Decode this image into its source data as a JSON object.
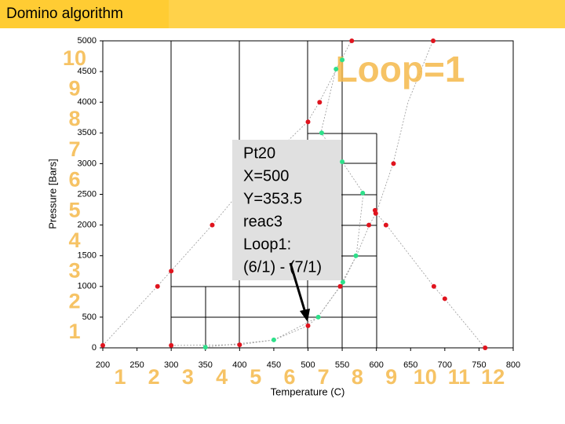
{
  "slide_title": "Domino algorithm",
  "chart_data": {
    "type": "scatter",
    "title": "Loop=1",
    "xlabel": "Temperature (C)",
    "ylabel": "Pressure [Bars]",
    "xlim": [
      200,
      800
    ],
    "ylim": [
      0,
      5000
    ],
    "xticks": [
      200,
      250,
      300,
      350,
      400,
      450,
      500,
      550,
      600,
      650,
      700,
      750,
      800
    ],
    "yticks": [
      0,
      500,
      1000,
      1500,
      2000,
      2500,
      3000,
      3500,
      4000,
      4500,
      5000
    ],
    "series": [
      {
        "color": "#e0141e",
        "x": [
          200,
          280,
          300,
          360,
          300,
          400,
          500,
          500,
          517,
          564,
          547,
          589,
          598,
          599,
          625,
          614,
          684,
          700,
          759,
          683
        ],
        "values": [
          40,
          1000,
          1250,
          2000,
          40,
          50,
          360,
          3680,
          4000,
          5000,
          1000,
          2000,
          2240,
          2190,
          3000,
          2000,
          1000,
          800,
          0,
          5000
        ]
      },
      {
        "color": "#2ee08a",
        "x": [
          350,
          450,
          515,
          520,
          541,
          550,
          551,
          570,
          580,
          550
        ],
        "values": [
          10,
          130,
          500,
          3500,
          4540,
          4690,
          1070,
          1500,
          2520,
          3030
        ]
      }
    ],
    "annotation": [
      "Pt20",
      "X=500",
      "Y=353.5",
      "reac3",
      "Loop1:",
      "(6/1) - (7/1)"
    ],
    "row_labels": [
      "1",
      "2",
      "3",
      "4",
      "5",
      "6",
      "7",
      "8",
      "9",
      "10"
    ],
    "column_labels": [
      "1",
      "2",
      "3",
      "4",
      "5",
      "6",
      "7",
      "8",
      "9",
      "10",
      "11",
      "12"
    ]
  }
}
